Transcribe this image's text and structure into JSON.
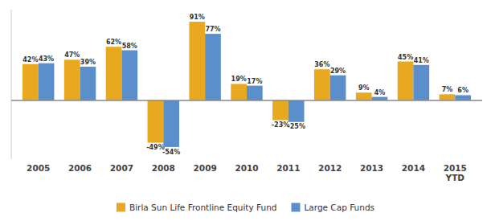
{
  "chart_data": {
    "type": "bar",
    "categories": [
      "2005",
      "2006",
      "2007",
      "2008",
      "2009",
      "2010",
      "2011",
      "2012",
      "2013",
      "2014",
      "2015\nYTD"
    ],
    "series": [
      {
        "name": "Birla Sun Life Frontline Equity Fund",
        "color": "#E8A820",
        "values": [
          42,
          47,
          62,
          -49,
          91,
          19,
          -23,
          36,
          9,
          45,
          7
        ],
        "value_labels": [
          "42%",
          "47%",
          "62%",
          "-49%",
          "91%",
          "19%",
          "-23%",
          "36%",
          "9%",
          "45%",
          "7%"
        ]
      },
      {
        "name": "Large Cap Funds",
        "color": "#5B8FCC",
        "values": [
          43,
          39,
          58,
          -54,
          77,
          17,
          -25,
          29,
          4,
          41,
          6
        ],
        "value_labels": [
          "43%",
          "39%",
          "58%",
          "-54%",
          "77%",
          "17%",
          "-25%",
          "29%",
          "4%",
          "41%",
          "6%"
        ]
      }
    ],
    "ylim": [
      -68,
      105
    ],
    "data_labels": true,
    "tick_labels": "x",
    "legend": "bottom",
    "grid": false
  }
}
